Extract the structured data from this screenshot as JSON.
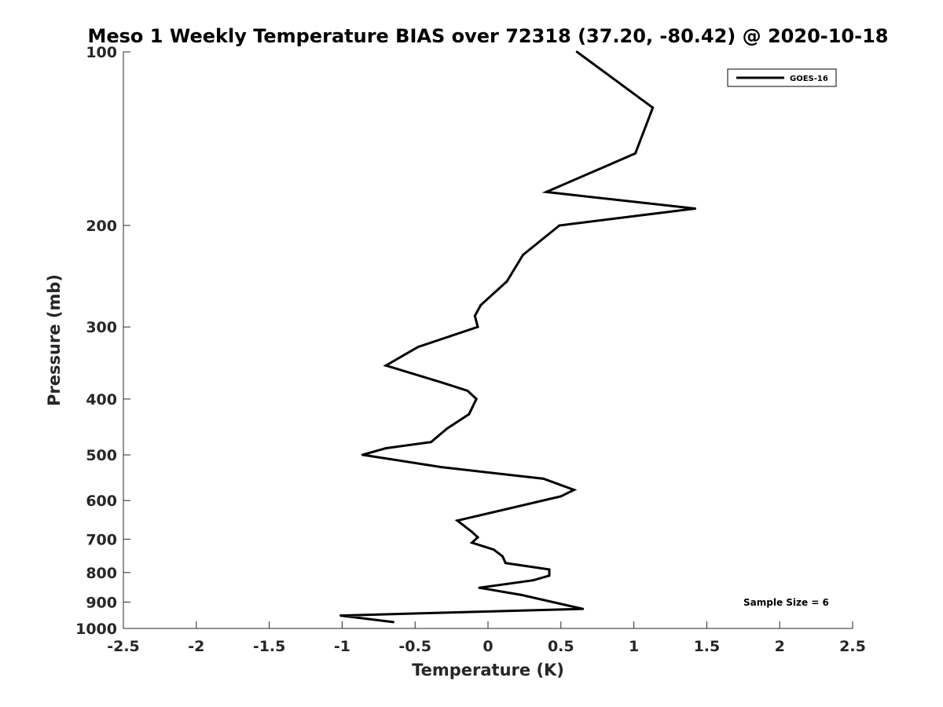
{
  "chart_data": {
    "type": "line",
    "title": "Meso 1 Weekly Temperature BIAS over 72318 (37.20, -80.42) @ 2020-10-18",
    "xlabel": "Temperature (K)",
    "ylabel": "Pressure (mb)",
    "xlim": [
      -2.5,
      2.5
    ],
    "ylim": [
      1000,
      100
    ],
    "y_scale": "log",
    "y_reversed": true,
    "x_ticks": [
      {
        "value": -2.5,
        "label": "-2.5"
      },
      {
        "value": -2,
        "label": "-2"
      },
      {
        "value": -1.5,
        "label": "-1.5"
      },
      {
        "value": -1,
        "label": "-1"
      },
      {
        "value": -0.5,
        "label": "-0.5"
      },
      {
        "value": 0,
        "label": "0"
      },
      {
        "value": 0.5,
        "label": "0.5"
      },
      {
        "value": 1,
        "label": "1"
      },
      {
        "value": 1.5,
        "label": "1.5"
      },
      {
        "value": 2,
        "label": "2"
      },
      {
        "value": 2.5,
        "label": "2.5"
      }
    ],
    "y_ticks": [
      {
        "value": 100,
        "label": "100"
      },
      {
        "value": 200,
        "label": "200"
      },
      {
        "value": 300,
        "label": "300"
      },
      {
        "value": 400,
        "label": "400"
      },
      {
        "value": 500,
        "label": "500"
      },
      {
        "value": 600,
        "label": "600"
      },
      {
        "value": 700,
        "label": "700"
      },
      {
        "value": 800,
        "label": "800"
      },
      {
        "value": 900,
        "label": "900"
      },
      {
        "value": 1000,
        "label": "1000"
      }
    ],
    "grid": false,
    "legend_position": "top-right",
    "series": [
      {
        "name": "GOES-16",
        "color": "#000000",
        "points": [
          {
            "x": 0.61,
            "y": 100
          },
          {
            "x": 1.13,
            "y": 125
          },
          {
            "x": 1.01,
            "y": 150
          },
          {
            "x": 0.4,
            "y": 175
          },
          {
            "x": 1.42,
            "y": 187
          },
          {
            "x": 0.49,
            "y": 200
          },
          {
            "x": 0.24,
            "y": 225
          },
          {
            "x": 0.13,
            "y": 250
          },
          {
            "x": -0.05,
            "y": 275
          },
          {
            "x": -0.09,
            "y": 287
          },
          {
            "x": -0.07,
            "y": 300
          },
          {
            "x": -0.48,
            "y": 325
          },
          {
            "x": -0.7,
            "y": 350
          },
          {
            "x": -0.31,
            "y": 375
          },
          {
            "x": -0.14,
            "y": 387
          },
          {
            "x": -0.08,
            "y": 400
          },
          {
            "x": -0.13,
            "y": 425
          },
          {
            "x": -0.28,
            "y": 450
          },
          {
            "x": -0.39,
            "y": 475
          },
          {
            "x": -0.7,
            "y": 487
          },
          {
            "x": -0.86,
            "y": 500
          },
          {
            "x": -0.32,
            "y": 525
          },
          {
            "x": 0.38,
            "y": 550
          },
          {
            "x": 0.59,
            "y": 575
          },
          {
            "x": 0.5,
            "y": 590
          },
          {
            "x": -0.21,
            "y": 650
          },
          {
            "x": -0.11,
            "y": 680
          },
          {
            "x": -0.07,
            "y": 695
          },
          {
            "x": -0.11,
            "y": 710
          },
          {
            "x": 0.04,
            "y": 730
          },
          {
            "x": 0.1,
            "y": 750
          },
          {
            "x": 0.12,
            "y": 770
          },
          {
            "x": 0.42,
            "y": 790
          },
          {
            "x": 0.42,
            "y": 810
          },
          {
            "x": 0.31,
            "y": 825
          },
          {
            "x": -0.06,
            "y": 850
          },
          {
            "x": 0.23,
            "y": 875
          },
          {
            "x": 0.65,
            "y": 925
          },
          {
            "x": -1.01,
            "y": 950
          },
          {
            "x": -0.65,
            "y": 975
          }
        ]
      }
    ],
    "annotations": [
      {
        "text": "Sample Size = 6",
        "position": "bottom-right"
      }
    ]
  }
}
